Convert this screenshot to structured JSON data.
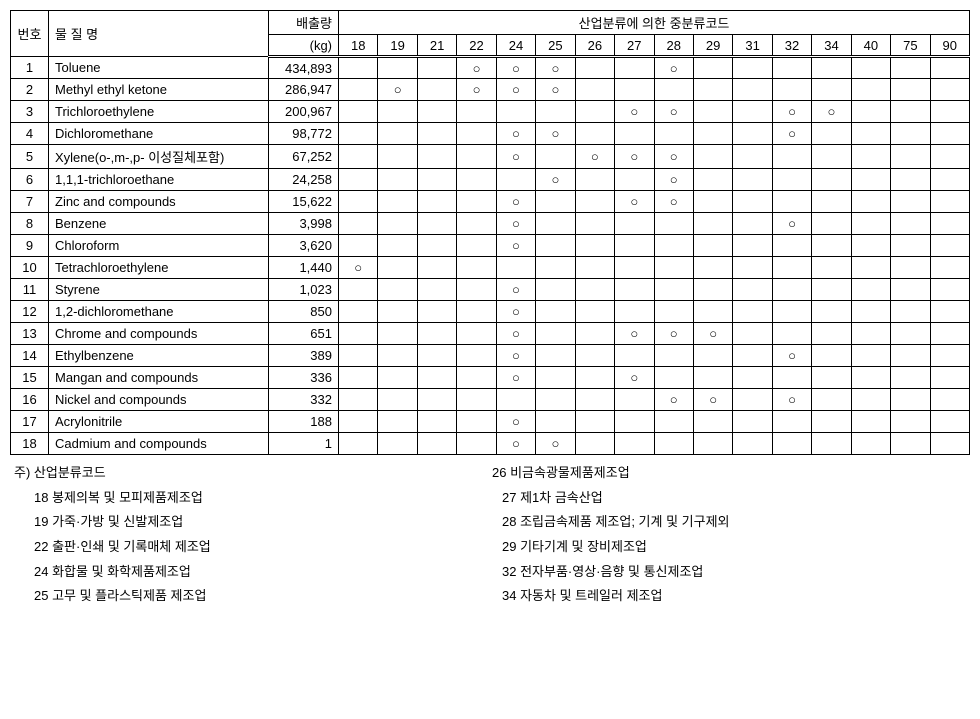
{
  "header": {
    "num": "번호",
    "name": "물 질 명",
    "emit1": "배출량",
    "emit2": "(kg)",
    "codes_title": "산업분류에 의한 중분류코드"
  },
  "codes": [
    "18",
    "19",
    "21",
    "22",
    "24",
    "25",
    "26",
    "27",
    "28",
    "29",
    "31",
    "32",
    "34",
    "40",
    "75",
    "90"
  ],
  "rows": [
    {
      "n": "1",
      "name": "Toluene",
      "emit": "434,893",
      "marks": {
        "22": "○",
        "24": "○",
        "25": "○",
        "28": "○"
      }
    },
    {
      "n": "2",
      "name": "Methyl ethyl ketone",
      "emit": "286,947",
      "marks": {
        "19": "○",
        "22": "○",
        "24": "○",
        "25": "○"
      }
    },
    {
      "n": "3",
      "name": "Trichloroethylene",
      "emit": "200,967",
      "marks": {
        "27": "○",
        "28": "○",
        "32": "○",
        "34": "○"
      }
    },
    {
      "n": "4",
      "name": "Dichloromethane",
      "emit": "98,772",
      "marks": {
        "24": "○",
        "25": "○",
        "32": "○"
      }
    },
    {
      "n": "5",
      "name": "Xylene(o-,m-,p- 이성질체포함)",
      "emit": "67,252",
      "marks": {
        "24": "○",
        "26": "○",
        "27": "○",
        "28": "○"
      }
    },
    {
      "n": "6",
      "name": "1,1,1-trichloroethane",
      "emit": "24,258",
      "marks": {
        "25": "○",
        "28": "○"
      }
    },
    {
      "n": "7",
      "name": "Zinc and compounds",
      "emit": "15,622",
      "marks": {
        "24": "○",
        "27": "○",
        "28": "○"
      }
    },
    {
      "n": "8",
      "name": "Benzene",
      "emit": "3,998",
      "marks": {
        "24": "○",
        "32": "○"
      }
    },
    {
      "n": "9",
      "name": "Chloroform",
      "emit": "3,620",
      "marks": {
        "24": "○"
      }
    },
    {
      "n": "10",
      "name": "Tetrachloroethylene",
      "emit": "1,440",
      "marks": {
        "18": "○"
      }
    },
    {
      "n": "11",
      "name": "Styrene",
      "emit": "1,023",
      "marks": {
        "24": "○"
      }
    },
    {
      "n": "12",
      "name": "1,2-dichloromethane",
      "emit": "850",
      "marks": {
        "24": "○"
      }
    },
    {
      "n": "13",
      "name": "Chrome and compounds",
      "emit": "651",
      "marks": {
        "24": "○",
        "27": "○",
        "28": "○",
        "29": "○"
      }
    },
    {
      "n": "14",
      "name": "Ethylbenzene",
      "emit": "389",
      "marks": {
        "24": "○",
        "32": "○"
      }
    },
    {
      "n": "15",
      "name": "Mangan and compounds",
      "emit": "336",
      "marks": {
        "24": "○",
        "27": "○"
      }
    },
    {
      "n": "16",
      "name": "Nickel and compounds",
      "emit": "332",
      "marks": {
        "28": "○",
        "29": "○",
        "32": "○"
      }
    },
    {
      "n": "17",
      "name": "Acrylonitrile",
      "emit": "188",
      "marks": {
        "24": "○"
      }
    },
    {
      "n": "18",
      "name": "Cadmium and compounds",
      "emit": "1",
      "marks": {
        "24": "○",
        "25": "○"
      }
    }
  ],
  "footnotes": {
    "title": "주) 산업분류코드",
    "left": [
      "18 봉제의복 및 모피제품제조업",
      "19 가죽·가방 및 신발제조업",
      "22 출판·인쇄 및 기록매체 제조업",
      "24 화합물 및 화학제품제조업",
      "25 고무 및 플라스틱제품 제조업"
    ],
    "right": [
      "26 비금속광물제품제조업",
      "27 제1차 금속산업",
      "28 조립금속제품 제조업; 기계 및 기구제외",
      "29 기타기계 및 장비제조업",
      "32 전자부품·영상·음향 및 통신제조업",
      "34 자동차 및 트레일러 제조업"
    ]
  }
}
